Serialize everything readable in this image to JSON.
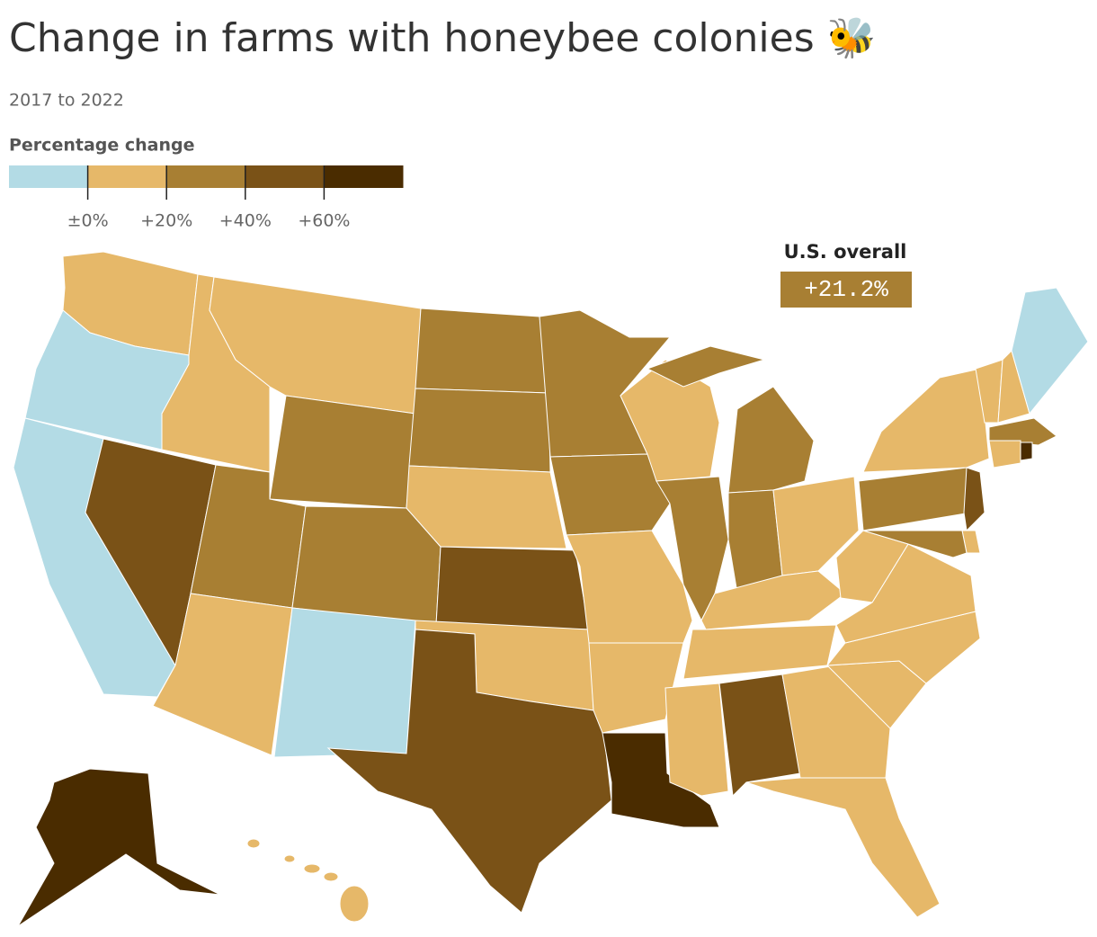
{
  "title": "Change in farms with honeybee colonies 🐝",
  "subtitle": "2017 to 2022",
  "legend": {
    "title": "Percentage change",
    "colors": [
      "#b3dbe5",
      "#e6b869",
      "#a87f33",
      "#7a5217",
      "#4a2c00"
    ],
    "ticks": [
      {
        "value": 0,
        "label": "±0%"
      },
      {
        "value": 20,
        "label": "+20%"
      },
      {
        "value": 40,
        "label": "+40%"
      },
      {
        "value": 60,
        "label": "+60%"
      }
    ]
  },
  "overall": {
    "label": "U.S. overall",
    "value": 21.2,
    "value_label": "+21.2%"
  },
  "map": {
    "state_colors": [
      "#e6b869",
      "#b3dbe5",
      "#b3dbe5",
      "#7a5217",
      "#e6b869",
      "#e6b869",
      "#a87f33",
      "#a87f33",
      "#e6b869",
      "#a87f33",
      "#b3dbe5",
      "#a87f33",
      "#a87f33",
      "#e6b869",
      "#7a5217",
      "#e6b869",
      "#7a5217",
      "#a87f33",
      "#a87f33",
      "#e6b869",
      "#e6b869",
      "#4a2c00",
      "#e6b869",
      "#a87f33",
      "#a87f33",
      "#a87f33",
      "#e6b869",
      "#e6b869",
      "#e6b869",
      "#e6b869",
      "#7a5217",
      "#e6b869",
      "#e6b869",
      "#e6b869",
      "#e6b869",
      "#e6b869",
      "#e6b869",
      "#a87f33",
      "#e6b869",
      "#e6b869",
      "#e6b869",
      "#b3dbe5",
      "#a87f33",
      "#4a2c00",
      "#e6b869",
      "#7a5217",
      "#e6b869",
      "#a87f33",
      "#4a2c00",
      "#e6b869"
    ]
  }
}
